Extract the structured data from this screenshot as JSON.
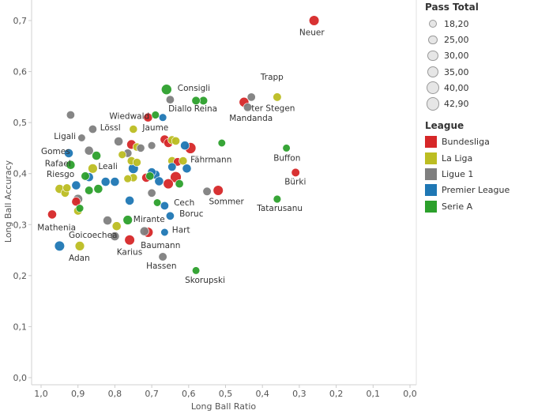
{
  "chart_data": {
    "type": "scatter",
    "title": "",
    "xlabel": "Long Ball Ratio",
    "ylabel": "Long Ball Accuracy",
    "x_reversed": true,
    "xlim": [
      0.0,
      1.0
    ],
    "ylim": [
      0.0,
      0.75
    ],
    "x_ticks": [
      "1,0",
      "0,9",
      "0,8",
      "0,7",
      "0,6",
      "0,5",
      "0,4",
      "0,3",
      "0,2",
      "0,1",
      "0,0"
    ],
    "x_tick_values": [
      1.0,
      0.9,
      0.8,
      0.7,
      0.6,
      0.5,
      0.4,
      0.3,
      0.2,
      0.1,
      0.0
    ],
    "y_ticks": [
      "0,0",
      "0,1",
      "0,2",
      "0,3",
      "0,4",
      "0,5",
      "0,6",
      "0,7"
    ],
    "y_tick_values": [
      0.0,
      0.1,
      0.2,
      0.3,
      0.4,
      0.5,
      0.6,
      0.7
    ],
    "grid": false,
    "legend": {
      "placement": "right",
      "size_title": "Pass Total",
      "size_items": [
        "18,20",
        "25,00",
        "30,00",
        "35,00",
        "40,00",
        "42,90"
      ],
      "size_values": [
        18.2,
        25.0,
        30.0,
        35.0,
        40.0,
        42.9
      ],
      "color_title": "League",
      "color_items": [
        {
          "name": "Bundesliga",
          "color": "#d62728"
        },
        {
          "name": "La Liga",
          "color": "#bcbd22"
        },
        {
          "name": "Ligue 1",
          "color": "#7f7f7f"
        },
        {
          "name": "Premier League",
          "color": "#1f77b4"
        },
        {
          "name": "Serie A",
          "color": "#2ca02c"
        }
      ]
    },
    "points": [
      {
        "x": 0.26,
        "y": 0.7,
        "league": "Bundesliga",
        "pass_total": 35,
        "label": "Neuer"
      },
      {
        "x": 0.36,
        "y": 0.55,
        "league": "La Liga",
        "pass_total": 28,
        "label": "Trapp"
      },
      {
        "x": 0.43,
        "y": 0.55,
        "league": "Ligue 1",
        "pass_total": 27,
        "label": ""
      },
      {
        "x": 0.44,
        "y": 0.53,
        "league": "Ligue 1",
        "pass_total": 28,
        "label": "ter Stegen"
      },
      {
        "x": 0.45,
        "y": 0.54,
        "league": "Bundesliga",
        "pass_total": 34,
        "label": "Mandanda"
      },
      {
        "x": 0.66,
        "y": 0.565,
        "league": "Serie A",
        "pass_total": 37,
        "label": "Consigli"
      },
      {
        "x": 0.56,
        "y": 0.543,
        "league": "Serie A",
        "pass_total": 28,
        "label": ""
      },
      {
        "x": 0.58,
        "y": 0.543,
        "league": "Serie A",
        "pass_total": 28,
        "label": "Reina"
      },
      {
        "x": 0.65,
        "y": 0.545,
        "league": "Ligue 1",
        "pass_total": 27,
        "label": "Diallo"
      },
      {
        "x": 0.92,
        "y": 0.515,
        "league": "Ligue 1",
        "pass_total": 27,
        "label": ""
      },
      {
        "x": 0.71,
        "y": 0.51,
        "league": "Bundesliga",
        "pass_total": 30,
        "label": "Wiedwald"
      },
      {
        "x": 0.69,
        "y": 0.515,
        "league": "Serie A",
        "pass_total": 25,
        "label": ""
      },
      {
        "x": 0.67,
        "y": 0.51,
        "league": "Premier League",
        "pass_total": 25,
        "label": ""
      },
      {
        "x": 0.86,
        "y": 0.487,
        "league": "Ligue 1",
        "pass_total": 27,
        "label": "Lössl"
      },
      {
        "x": 0.75,
        "y": 0.487,
        "league": "La Liga",
        "pass_total": 26,
        "label": "Jaume"
      },
      {
        "x": 0.89,
        "y": 0.47,
        "league": "Ligue 1",
        "pass_total": 24,
        "label": "Ligali"
      },
      {
        "x": 0.79,
        "y": 0.463,
        "league": "Ligue 1",
        "pass_total": 30,
        "label": ""
      },
      {
        "x": 0.755,
        "y": 0.457,
        "league": "Bundesliga",
        "pass_total": 32,
        "label": ""
      },
      {
        "x": 0.74,
        "y": 0.452,
        "league": "La Liga",
        "pass_total": 27,
        "label": ""
      },
      {
        "x": 0.73,
        "y": 0.45,
        "league": "Ligue 1",
        "pass_total": 26,
        "label": ""
      },
      {
        "x": 0.7,
        "y": 0.455,
        "league": "Ligue 1",
        "pass_total": 25,
        "label": ""
      },
      {
        "x": 0.665,
        "y": 0.467,
        "league": "Bundesliga",
        "pass_total": 30,
        "label": ""
      },
      {
        "x": 0.655,
        "y": 0.46,
        "league": "Bundesliga",
        "pass_total": 30,
        "label": ""
      },
      {
        "x": 0.645,
        "y": 0.466,
        "league": "La Liga",
        "pass_total": 28,
        "label": ""
      },
      {
        "x": 0.635,
        "y": 0.464,
        "league": "La Liga",
        "pass_total": 27,
        "label": ""
      },
      {
        "x": 0.61,
        "y": 0.455,
        "league": "Premier League",
        "pass_total": 30,
        "label": ""
      },
      {
        "x": 0.595,
        "y": 0.45,
        "league": "Bundesliga",
        "pass_total": 40,
        "label": ""
      },
      {
        "x": 0.51,
        "y": 0.46,
        "league": "Serie A",
        "pass_total": 24,
        "label": ""
      },
      {
        "x": 0.335,
        "y": 0.45,
        "league": "Serie A",
        "pass_total": 24,
        "label": "Buffon"
      },
      {
        "x": 0.87,
        "y": 0.445,
        "league": "Ligue 1",
        "pass_total": 30,
        "label": ""
      },
      {
        "x": 0.85,
        "y": 0.435,
        "league": "Serie A",
        "pass_total": 30,
        "label": ""
      },
      {
        "x": 0.78,
        "y": 0.437,
        "league": "La Liga",
        "pass_total": 25,
        "label": ""
      },
      {
        "x": 0.765,
        "y": 0.44,
        "league": "Ligue 1",
        "pass_total": 28,
        "label": ""
      },
      {
        "x": 0.925,
        "y": 0.44,
        "league": "Premier League",
        "pass_total": 30,
        "label": "Gomes"
      },
      {
        "x": 0.645,
        "y": 0.425,
        "league": "La Liga",
        "pass_total": 28,
        "label": ""
      },
      {
        "x": 0.63,
        "y": 0.423,
        "league": "Bundesliga",
        "pass_total": 28,
        "label": ""
      },
      {
        "x": 0.615,
        "y": 0.425,
        "league": "La Liga",
        "pass_total": 27,
        "label": "Fährmann"
      },
      {
        "x": 0.755,
        "y": 0.425,
        "league": "La Liga",
        "pass_total": 28,
        "label": ""
      },
      {
        "x": 0.74,
        "y": 0.422,
        "league": "La Liga",
        "pass_total": 26,
        "label": ""
      },
      {
        "x": 0.92,
        "y": 0.417,
        "league": "Serie A",
        "pass_total": 30,
        "label": "Rafael"
      },
      {
        "x": 0.86,
        "y": 0.41,
        "league": "La Liga",
        "pass_total": 32,
        "label": "Leali"
      },
      {
        "x": 0.75,
        "y": 0.41,
        "league": "Premier League",
        "pass_total": 35,
        "label": ""
      },
      {
        "x": 0.645,
        "y": 0.413,
        "league": "Premier League",
        "pass_total": 28,
        "label": ""
      },
      {
        "x": 0.605,
        "y": 0.41,
        "league": "Premier League",
        "pass_total": 30,
        "label": ""
      },
      {
        "x": 0.69,
        "y": 0.398,
        "league": "Premier League",
        "pass_total": 30,
        "label": ""
      },
      {
        "x": 0.7,
        "y": 0.403,
        "league": "Premier League",
        "pass_total": 28,
        "label": ""
      },
      {
        "x": 0.705,
        "y": 0.395,
        "league": "Serie A",
        "pass_total": 27,
        "label": ""
      },
      {
        "x": 0.715,
        "y": 0.392,
        "league": "Bundesliga",
        "pass_total": 30,
        "label": ""
      },
      {
        "x": 0.88,
        "y": 0.395,
        "league": "Serie A",
        "pass_total": 28,
        "label": ""
      },
      {
        "x": 0.87,
        "y": 0.393,
        "league": "Premier League",
        "pass_total": 30,
        "label": ""
      },
      {
        "x": 0.765,
        "y": 0.39,
        "league": "La Liga",
        "pass_total": 25,
        "label": ""
      },
      {
        "x": 0.75,
        "y": 0.392,
        "league": "La Liga",
        "pass_total": 26,
        "label": ""
      },
      {
        "x": 0.68,
        "y": 0.385,
        "league": "Premier League",
        "pass_total": 30,
        "label": ""
      },
      {
        "x": 0.655,
        "y": 0.38,
        "league": "Bundesliga",
        "pass_total": 35,
        "label": ""
      },
      {
        "x": 0.635,
        "y": 0.393,
        "league": "Bundesliga",
        "pass_total": 40,
        "label": ""
      },
      {
        "x": 0.625,
        "y": 0.38,
        "league": "Serie A",
        "pass_total": 27,
        "label": ""
      },
      {
        "x": 0.825,
        "y": 0.384,
        "league": "Premier League",
        "pass_total": 30,
        "label": ""
      },
      {
        "x": 0.8,
        "y": 0.384,
        "league": "Premier League",
        "pass_total": 30,
        "label": ""
      },
      {
        "x": 0.95,
        "y": 0.37,
        "league": "La Liga",
        "pass_total": 30,
        "label": "Riesgo"
      },
      {
        "x": 0.93,
        "y": 0.372,
        "league": "La Liga",
        "pass_total": 26,
        "label": ""
      },
      {
        "x": 0.935,
        "y": 0.362,
        "league": "La Liga",
        "pass_total": 27,
        "label": ""
      },
      {
        "x": 0.905,
        "y": 0.377,
        "league": "Premier League",
        "pass_total": 30,
        "label": ""
      },
      {
        "x": 0.87,
        "y": 0.367,
        "league": "Serie A",
        "pass_total": 28,
        "label": ""
      },
      {
        "x": 0.845,
        "y": 0.37,
        "league": "Serie A",
        "pass_total": 30,
        "label": ""
      },
      {
        "x": 0.7,
        "y": 0.362,
        "league": "Ligue 1",
        "pass_total": 27,
        "label": ""
      },
      {
        "x": 0.55,
        "y": 0.365,
        "league": "Ligue 1",
        "pass_total": 28,
        "label": ""
      },
      {
        "x": 0.52,
        "y": 0.367,
        "league": "Bundesliga",
        "pass_total": 35,
        "label": "Sommer"
      },
      {
        "x": 0.31,
        "y": 0.402,
        "league": "Bundesliga",
        "pass_total": 28,
        "label": "Bürki"
      },
      {
        "x": 0.36,
        "y": 0.35,
        "league": "Serie A",
        "pass_total": 25,
        "label": "Tatarusanu"
      },
      {
        "x": 0.9,
        "y": 0.35,
        "league": "Ligue 1",
        "pass_total": 32,
        "label": ""
      },
      {
        "x": 0.905,
        "y": 0.345,
        "league": "Bundesliga",
        "pass_total": 30,
        "label": ""
      },
      {
        "x": 0.76,
        "y": 0.347,
        "league": "Premier League",
        "pass_total": 30,
        "label": ""
      },
      {
        "x": 0.685,
        "y": 0.343,
        "league": "Serie A",
        "pass_total": 24,
        "label": ""
      },
      {
        "x": 0.665,
        "y": 0.337,
        "league": "Premier League",
        "pass_total": 27,
        "label": "Cech"
      },
      {
        "x": 0.65,
        "y": 0.317,
        "league": "Premier League",
        "pass_total": 27,
        "label": "Boruc"
      },
      {
        "x": 0.895,
        "y": 0.332,
        "league": "Serie A",
        "pass_total": 25,
        "label": ""
      },
      {
        "x": 0.9,
        "y": 0.327,
        "league": "La Liga",
        "pass_total": 28,
        "label": ""
      },
      {
        "x": 0.97,
        "y": 0.32,
        "league": "Bundesliga",
        "pass_total": 30,
        "label": "Mathenia"
      },
      {
        "x": 0.82,
        "y": 0.308,
        "league": "Ligue 1",
        "pass_total": 30,
        "label": ""
      },
      {
        "x": 0.765,
        "y": 0.309,
        "league": "Serie A",
        "pass_total": 32,
        "label": "Mirante"
      },
      {
        "x": 0.795,
        "y": 0.297,
        "league": "La Liga",
        "pass_total": 30,
        "label": ""
      },
      {
        "x": 0.72,
        "y": 0.287,
        "league": "Ligue 1",
        "pass_total": 30,
        "label": ""
      },
      {
        "x": 0.71,
        "y": 0.285,
        "league": "Bundesliga",
        "pass_total": 35,
        "label": "Baumann"
      },
      {
        "x": 0.665,
        "y": 0.285,
        "league": "Premier League",
        "pass_total": 24,
        "label": "Hart"
      },
      {
        "x": 0.8,
        "y": 0.277,
        "league": "Ligue 1",
        "pass_total": 30,
        "label": "Goicoechea"
      },
      {
        "x": 0.76,
        "y": 0.27,
        "league": "Bundesliga",
        "pass_total": 35,
        "label": "Karius"
      },
      {
        "x": 0.95,
        "y": 0.258,
        "league": "Premier League",
        "pass_total": 35,
        "label": "Adan"
      },
      {
        "x": 0.895,
        "y": 0.258,
        "league": "La Liga",
        "pass_total": 32,
        "label": ""
      },
      {
        "x": 0.67,
        "y": 0.237,
        "league": "Ligue 1",
        "pass_total": 28,
        "label": "Hassen"
      },
      {
        "x": 0.58,
        "y": 0.21,
        "league": "Serie A",
        "pass_total": 24,
        "label": "Skorupski"
      }
    ],
    "annotations": [
      {
        "text": "Neuer",
        "x": 0.3,
        "y": 0.671,
        "anchor": "start"
      },
      {
        "text": "Trapp",
        "x": 0.405,
        "y": 0.584,
        "anchor": "start"
      },
      {
        "text": "ter Stegen",
        "x": 0.43,
        "y": 0.523,
        "anchor": "start"
      },
      {
        "text": "Mandanda",
        "x": 0.49,
        "y": 0.503,
        "anchor": "start"
      },
      {
        "text": "Consigli",
        "x": 0.63,
        "y": 0.562,
        "anchor": "start"
      },
      {
        "text": "Reina",
        "x": 0.585,
        "y": 0.522,
        "anchor": "start"
      },
      {
        "text": "Diallo",
        "x": 0.655,
        "y": 0.522,
        "anchor": "start"
      },
      {
        "text": "Wiedwald",
        "x": 0.815,
        "y": 0.507,
        "anchor": "start"
      },
      {
        "text": "Lössl",
        "x": 0.84,
        "y": 0.485,
        "anchor": "start"
      },
      {
        "text": "Jaume",
        "x": 0.725,
        "y": 0.485,
        "anchor": "start"
      },
      {
        "text": "Ligali",
        "x": 0.965,
        "y": 0.468,
        "anchor": "start"
      },
      {
        "text": "Gomes",
        "x": 1.0,
        "y": 0.438,
        "anchor": "start"
      },
      {
        "text": "Buffon",
        "x": 0.37,
        "y": 0.425,
        "anchor": "start"
      },
      {
        "text": "Fährmann",
        "x": 0.595,
        "y": 0.422,
        "anchor": "start"
      },
      {
        "text": "Rafael",
        "x": 0.99,
        "y": 0.414,
        "anchor": "start"
      },
      {
        "text": "Leali",
        "x": 0.845,
        "y": 0.409,
        "anchor": "start"
      },
      {
        "text": "Riesgo",
        "x": 0.985,
        "y": 0.393,
        "anchor": "start"
      },
      {
        "text": "Bürki",
        "x": 0.34,
        "y": 0.379,
        "anchor": "start"
      },
      {
        "text": "Cech",
        "x": 0.64,
        "y": 0.338,
        "anchor": "start"
      },
      {
        "text": "Sommer",
        "x": 0.545,
        "y": 0.34,
        "anchor": "start"
      },
      {
        "text": "Tatarusanu",
        "x": 0.415,
        "y": 0.327,
        "anchor": "start"
      },
      {
        "text": "Boruc",
        "x": 0.625,
        "y": 0.316,
        "anchor": "start"
      },
      {
        "text": "Mirante",
        "x": 0.75,
        "y": 0.305,
        "anchor": "start"
      },
      {
        "text": "Mathenia",
        "x": 1.01,
        "y": 0.289,
        "anchor": "start"
      },
      {
        "text": "Hart",
        "x": 0.645,
        "y": 0.284,
        "anchor": "start"
      },
      {
        "text": "Goicoechea",
        "x": 0.925,
        "y": 0.274,
        "anchor": "start"
      },
      {
        "text": "Baumann",
        "x": 0.73,
        "y": 0.254,
        "anchor": "start"
      },
      {
        "text": "Karius",
        "x": 0.795,
        "y": 0.241,
        "anchor": "start"
      },
      {
        "text": "Adan",
        "x": 0.925,
        "y": 0.229,
        "anchor": "start"
      },
      {
        "text": "Hassen",
        "x": 0.715,
        "y": 0.214,
        "anchor": "start"
      },
      {
        "text": "Skorupski",
        "x": 0.61,
        "y": 0.186,
        "anchor": "start"
      }
    ]
  }
}
